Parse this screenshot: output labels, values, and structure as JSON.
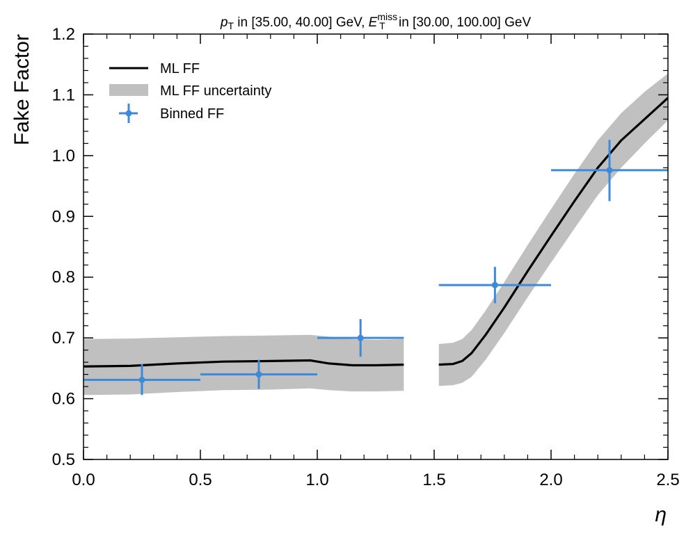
{
  "chart_data": {
    "type": "line",
    "title": {
      "pt_symbol": "p",
      "pt_sub": "T",
      "pt_range": " in [35.00, 40.00] GeV, ",
      "et_symbol": "E",
      "et_sub": "T",
      "et_sup": "miss",
      "et_range": " in [30.00, 100.00] GeV"
    },
    "xlabel": "η",
    "ylabel": "Fake Factor",
    "xlim": [
      0.0,
      2.5
    ],
    "ylim": [
      0.5,
      1.2
    ],
    "x_ticks": [
      "0.0",
      "0.5",
      "1.0",
      "1.5",
      "2.0",
      "2.5"
    ],
    "y_ticks": [
      "0.5",
      "0.6",
      "0.7",
      "0.8",
      "0.9",
      "1.0",
      "1.1",
      "1.2"
    ],
    "legend": {
      "position": "top-left",
      "entries": [
        "ML FF",
        "ML FF uncertainty",
        "Binned FF"
      ]
    },
    "colors": {
      "line": "#000000",
      "band": "#c0c0c0",
      "binned": "#3e8ad6"
    },
    "series": [
      {
        "name": "ML FF",
        "segments": [
          [
            [
              0.0,
              0.653
            ],
            [
              0.2,
              0.654
            ],
            [
              0.4,
              0.658
            ],
            [
              0.6,
              0.661
            ],
            [
              0.8,
              0.662
            ],
            [
              0.97,
              0.663
            ],
            [
              1.05,
              0.658
            ],
            [
              1.15,
              0.655
            ],
            [
              1.25,
              0.655
            ],
            [
              1.37,
              0.656
            ]
          ],
          [
            [
              1.52,
              0.656
            ],
            [
              1.58,
              0.657
            ],
            [
              1.62,
              0.662
            ],
            [
              1.66,
              0.675
            ],
            [
              1.72,
              0.705
            ],
            [
              1.8,
              0.75
            ],
            [
              1.9,
              0.81
            ],
            [
              2.0,
              0.868
            ],
            [
              2.1,
              0.925
            ],
            [
              2.2,
              0.98
            ],
            [
              2.3,
              1.025
            ],
            [
              2.4,
              1.06
            ],
            [
              2.5,
              1.095
            ]
          ]
        ]
      },
      {
        "name": "ML FF uncertainty",
        "segments": [
          {
            "x": [
              0.0,
              0.2,
              0.4,
              0.6,
              0.8,
              0.97,
              1.05,
              1.15,
              1.25,
              1.37
            ],
            "upper": [
              0.698,
              0.699,
              0.701,
              0.703,
              0.704,
              0.705,
              0.702,
              0.698,
              0.697,
              0.698
            ],
            "lower": [
              0.606,
              0.607,
              0.611,
              0.614,
              0.615,
              0.617,
              0.614,
              0.612,
              0.612,
              0.613
            ]
          },
          {
            "x": [
              1.52,
              1.58,
              1.62,
              1.66,
              1.72,
              1.8,
              1.9,
              2.0,
              2.1,
              2.2,
              2.3,
              2.4,
              2.5
            ],
            "upper": [
              0.69,
              0.692,
              0.698,
              0.713,
              0.745,
              0.792,
              0.853,
              0.912,
              0.97,
              1.025,
              1.07,
              1.105,
              1.135
            ],
            "lower": [
              0.621,
              0.622,
              0.626,
              0.636,
              0.664,
              0.708,
              0.767,
              0.824,
              0.88,
              0.935,
              0.98,
              1.02,
              1.058
            ]
          }
        ]
      },
      {
        "name": "Binned FF",
        "points": [
          {
            "x": 0.25,
            "xmin": 0.0,
            "xmax": 0.5,
            "y": 0.631,
            "ylo": 0.606,
            "yhi": 0.657
          },
          {
            "x": 0.75,
            "xmin": 0.5,
            "xmax": 1.0,
            "y": 0.64,
            "ylo": 0.616,
            "yhi": 0.664
          },
          {
            "x": 1.185,
            "xmin": 1.0,
            "xmax": 1.37,
            "y": 0.7,
            "ylo": 0.669,
            "yhi": 0.731
          },
          {
            "x": 1.76,
            "xmin": 1.52,
            "xmax": 2.0,
            "y": 0.787,
            "ylo": 0.757,
            "yhi": 0.817
          },
          {
            "x": 2.25,
            "xmin": 2.0,
            "xmax": 2.5,
            "y": 0.976,
            "ylo": 0.925,
            "yhi": 1.026
          }
        ]
      }
    ]
  }
}
